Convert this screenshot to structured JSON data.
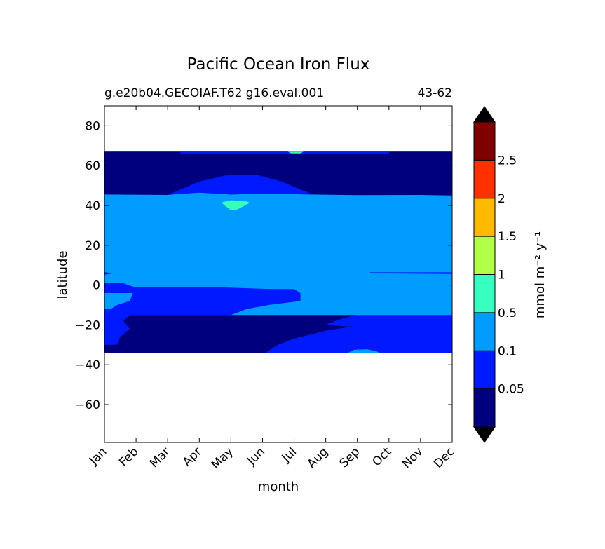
{
  "chart_data": {
    "type": "heatmap",
    "title": "Pacific Ocean Iron Flux",
    "subtitle_left": "g.e20b04.GECOIAF.T62 g16.eval.001",
    "subtitle_right": "43-62",
    "xlabel": "month",
    "ylabel": "latitude",
    "x_tick_labels": [
      "Jan",
      "Feb",
      "Mar",
      "Apr",
      "May",
      "Jun",
      "Jul",
      "Aug",
      "Sep",
      "Oct",
      "Nov",
      "Dec"
    ],
    "y_ticks": [
      80,
      60,
      40,
      20,
      0,
      -20,
      -40,
      -60
    ],
    "y_tick_labels": [
      "80",
      "60",
      "40",
      "20",
      "0",
      "−20",
      "−40",
      "−60"
    ],
    "xlim": [
      1,
      12
    ],
    "ylim": [
      -79,
      90
    ],
    "levels": [
      0.05,
      0.1,
      0.5,
      1,
      1.5,
      2,
      2.5
    ],
    "colorbar_tick_labels": [
      "0.05",
      "0.1",
      "0.5",
      "1",
      "1.5",
      "2",
      "2.5"
    ],
    "colorbar_label": "mmol m⁻² y⁻¹",
    "colorbar_extend": "both",
    "band_colors": [
      "#00007f",
      "#0019ff",
      "#009cff",
      "#36ffc0",
      "#b1ff46",
      "#ffb900",
      "#ff3000",
      "#7f0000"
    ],
    "extend_colors": {
      "under": "#000000",
      "over": "#000000"
    },
    "data_extent": {
      "lat_min": -34,
      "lat_max": 67
    },
    "regions": [
      {
        "level": "0.1-0.5",
        "lat_range": [
          -15,
          45
        ],
        "months": [
          1,
          12
        ]
      },
      {
        "level": "0.05-0.1",
        "lat_range": [
          -15,
          -1
        ],
        "months": [
          1,
          7
        ]
      },
      {
        "level": "0.05-0.1",
        "lat_range": [
          -34,
          -15
        ],
        "months": [
          8,
          12
        ]
      },
      {
        "level": "<0.05",
        "lat_range": [
          45,
          67
        ],
        "months": [
          1,
          12
        ]
      },
      {
        "level": "<0.05",
        "lat_range": [
          -34,
          -15
        ],
        "months": [
          1,
          9
        ]
      },
      {
        "level": "0.5-1",
        "lat_range": [
          38,
          42
        ],
        "months": [
          4.7,
          5.6
        ]
      }
    ]
  }
}
